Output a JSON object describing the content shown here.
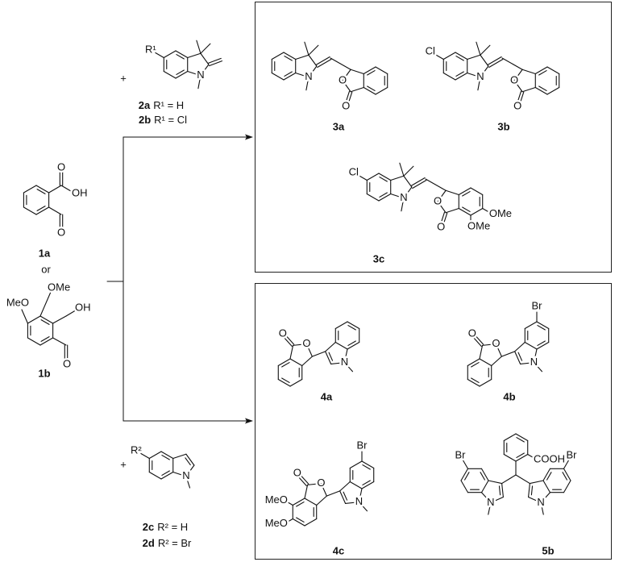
{
  "reagent_2": {
    "plus": "+",
    "substituent": "R¹",
    "atoms": [
      "N"
    ],
    "labels": [
      {
        "id": "2a",
        "text": "R¹ = H"
      },
      {
        "id": "2b",
        "text": "R¹ = Cl"
      }
    ]
  },
  "reagent_1a": {
    "id": "1a",
    "atoms": [
      "OH",
      "O",
      "O"
    ]
  },
  "separator": "or",
  "reagent_1b": {
    "id": "1b",
    "atoms": [
      "OMe",
      "MeO",
      "OH",
      "O"
    ]
  },
  "reagent_2cd": {
    "plus": "+",
    "substituent": "R²",
    "atoms": [
      "N"
    ],
    "labels": [
      {
        "id": "2c",
        "text": "R² = H"
      },
      {
        "id": "2d",
        "text": "R² = Br"
      }
    ]
  },
  "products_top": [
    {
      "id": "3a",
      "atoms": [
        "N",
        "O",
        "O"
      ]
    },
    {
      "id": "3b",
      "atoms": [
        "Cl",
        "N",
        "O",
        "O"
      ]
    },
    {
      "id": "3c",
      "atoms": [
        "Cl",
        "N",
        "O",
        "O",
        "OMe",
        "OMe"
      ]
    }
  ],
  "products_bottom": [
    {
      "id": "4a",
      "atoms": [
        "O",
        "O",
        "N"
      ]
    },
    {
      "id": "4b",
      "atoms": [
        "Br",
        "O",
        "O",
        "N"
      ]
    },
    {
      "id": "4c",
      "atoms": [
        "Br",
        "O",
        "O",
        "MeO",
        "MeO",
        "N"
      ]
    },
    {
      "id": "5b",
      "atoms": [
        "COOH",
        "Br",
        "Br",
        "N",
        "N"
      ]
    }
  ]
}
